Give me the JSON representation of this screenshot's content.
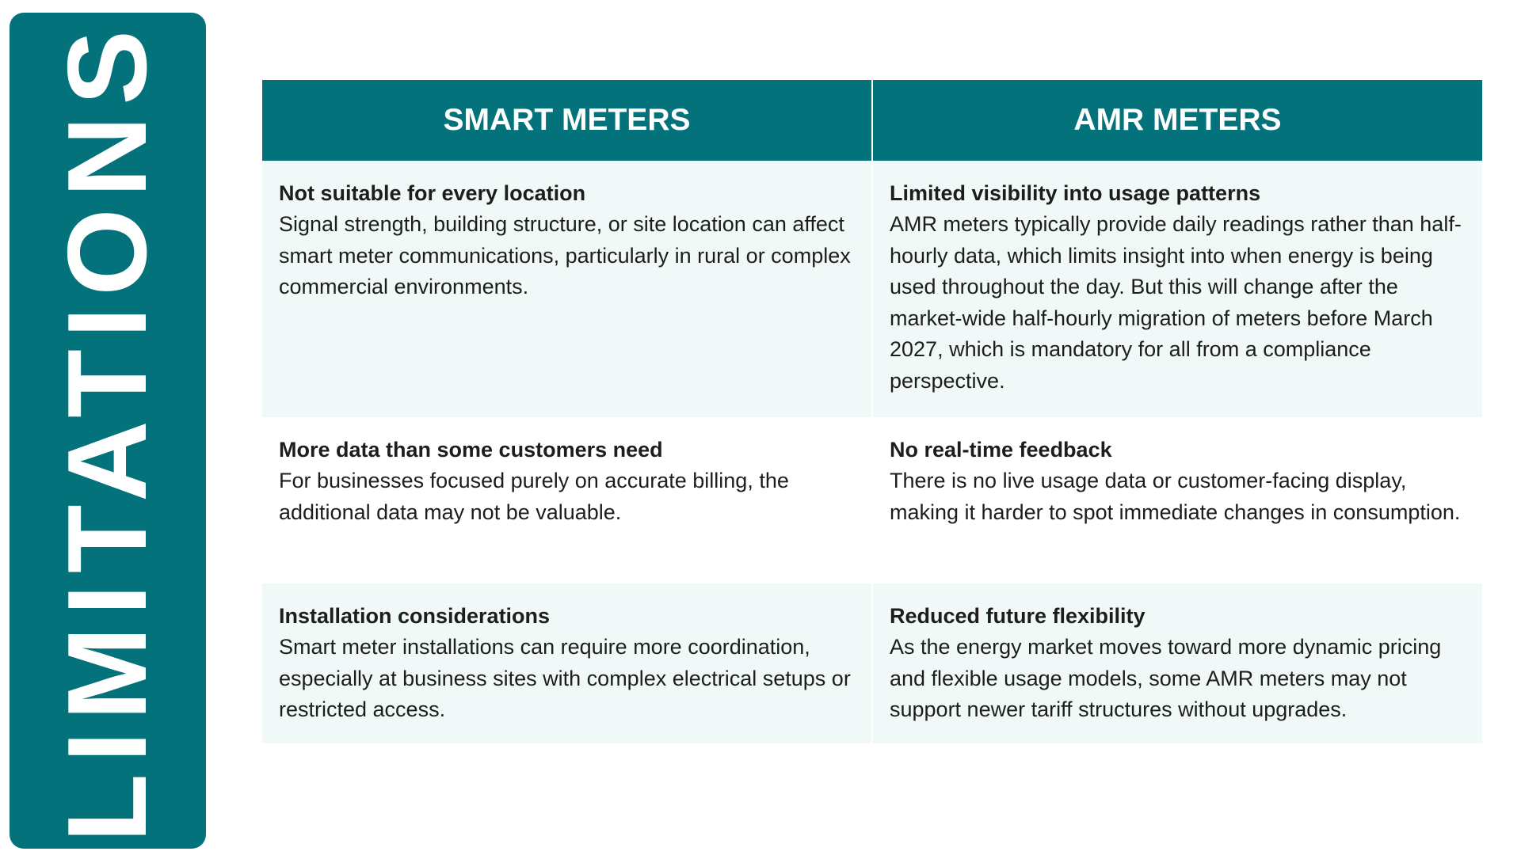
{
  "side_banner": {
    "text": "LIMITATIONS"
  },
  "columns": [
    "SMART METERS",
    "AMR METERS"
  ],
  "rows": [
    {
      "left": {
        "title": "Not suitable for every location",
        "text": "Signal strength, building structure, or site location can affect smart meter communications, particularly in rural or complex commercial environments."
      },
      "right": {
        "title": "Limited visibility into usage patterns",
        "text": "AMR meters typically provide daily readings rather than half-hourly data, which limits insight into when energy is being used throughout the day. But this will change after the market-wide half-hourly migration of meters before March 2027, which is mandatory for all from a compliance perspective."
      }
    },
    {
      "left": {
        "title": "More data than some customers need",
        "text": "For businesses focused purely on accurate billing, the additional data may not be valuable."
      },
      "right": {
        "title": "No real-time feedback",
        "text": "There is no live usage data or customer-facing display, making it harder to spot immediate changes in consumption."
      }
    },
    {
      "left": {
        "title": "Installation considerations",
        "text": "Smart meter installations can require more coordination, especially at business sites with complex electrical setups or restricted access."
      },
      "right": {
        "title": "Reduced future flexibility",
        "text": "As the energy market moves toward more dynamic pricing and flexible usage models, some AMR meters may not support newer tariff structures without upgrades."
      }
    }
  ],
  "colors": {
    "accent": "#03727a",
    "row_tint": "#f1f8f8",
    "text": "#1d1d1d"
  }
}
